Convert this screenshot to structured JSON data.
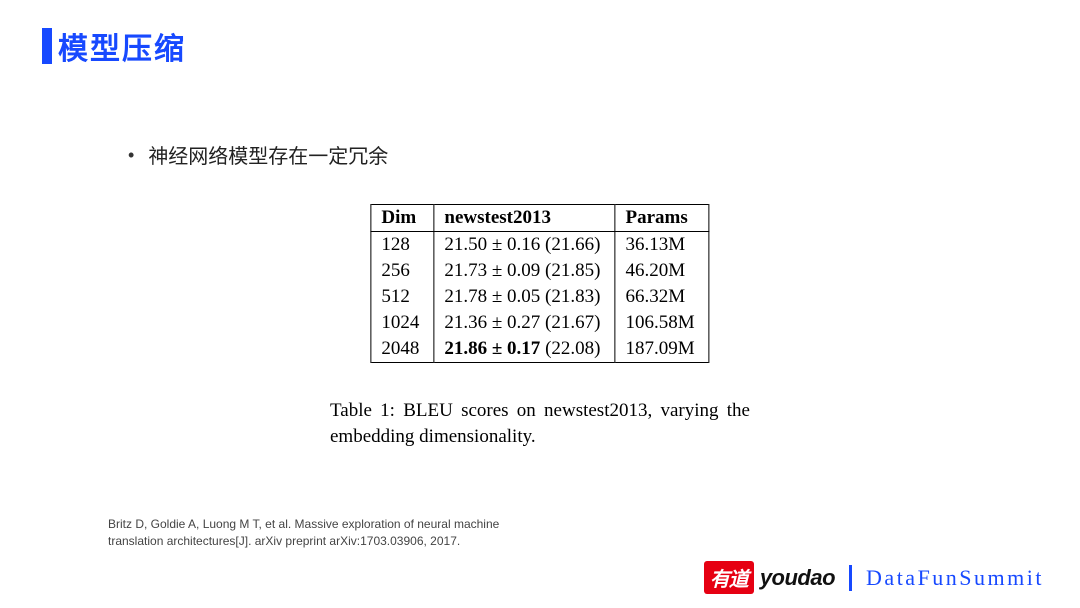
{
  "title": "模型压缩",
  "bullet": "神经网络模型存在一定冗余",
  "table": {
    "headers": [
      "Dim",
      "newstest2013",
      "Params"
    ],
    "rows": [
      {
        "dim": "128",
        "score": "21.50 ± 0.16 (21.66)",
        "bold": false,
        "params": "36.13M"
      },
      {
        "dim": "256",
        "score": "21.73 ± 0.09 (21.85)",
        "bold": false,
        "params": "46.20M"
      },
      {
        "dim": "512",
        "score": "21.78 ± 0.05 (21.83)",
        "bold": false,
        "params": "66.32M"
      },
      {
        "dim": "1024",
        "score": "21.36 ± 0.27 (21.67)",
        "bold": false,
        "params": "106.58M"
      },
      {
        "dim": "2048",
        "score": "21.86 ± 0.17 (22.08)",
        "bold": true,
        "params": "187.09M"
      }
    ]
  },
  "caption": "Table 1:  BLEU scores on newstest2013, varying the embedding dimensionality.",
  "citation_line1": "Britz D, Goldie A, Luong M T, et al. Massive exploration of neural machine",
  "citation_line2": "translation architectures[J]. arXiv preprint arXiv:1703.03906, 2017.",
  "footer": {
    "youdao_badge": "有道",
    "youdao_text": "youdao",
    "datafun": "DataFunSummit"
  }
}
